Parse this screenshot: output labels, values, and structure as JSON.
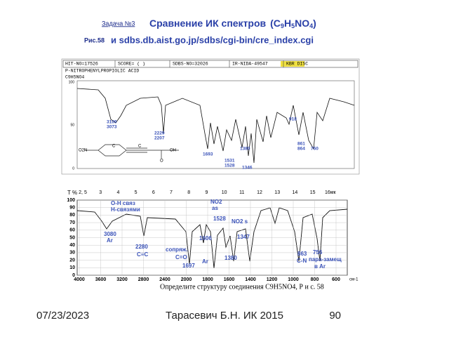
{
  "header": {
    "task": "Задача №3",
    "title": "Сравнение ИК спектров",
    "formula": [
      "(C",
      "9",
      "H",
      "5",
      "NO",
      "4",
      ")"
    ],
    "figure": "Рис.58",
    "link": "и sdbs.db.aist.go.jp/sdbs/cgi-bin/cre_index.cgi"
  },
  "spectrum1": {
    "info": [
      "HIT-NO=17526",
      "SCORE=  (  )",
      "SDBS-NO=32026",
      "IR-NIDA-49547",
      "KBR DISC"
    ],
    "compound": "P-NITROPHENYLPROPIOLIC ACID",
    "formula": "C9H5NO4",
    "yticks": [
      "100",
      "50",
      "0"
    ],
    "peaks": [
      "3109",
      "3073",
      "2229",
      "2207",
      "1693",
      "1531",
      "1528",
      "1346",
      "1380",
      "918",
      "861",
      "864",
      "760"
    ],
    "structure": [
      "O2N",
      "C",
      "C",
      "OH",
      "O"
    ]
  },
  "spectrum2": {
    "yunit": "T %",
    "top_ticks": [
      "2, 5",
      "3",
      "4",
      "5",
      "6",
      "7",
      "8",
      "9",
      "10",
      "11",
      "12",
      "13",
      "14",
      "15",
      "16мк"
    ],
    "yticks": [
      "100",
      "90",
      "80",
      "70",
      "60",
      "50",
      "40",
      "30",
      "20",
      "10",
      "0"
    ],
    "xticks": [
      "4000",
      "3600",
      "3200",
      "2800",
      "2400",
      "2000",
      "1800",
      "1600",
      "1400",
      "1200",
      "1000",
      "800",
      "600"
    ],
    "xunit": "см-1",
    "annotations": [
      "O-H связ",
      "H-связями",
      "3080",
      "Ar",
      "2280",
      "C≡C",
      "сопряж.",
      "C=O",
      "1697",
      "1606",
      "Ar",
      "NO2",
      "as",
      "1528",
      "NO2 s",
      "1347",
      "1380",
      "863",
      "C-N",
      "756",
      "пара-замещ",
      "в Ar"
    ],
    "caption": "Определите структуру соединения C9H5NO4, Р и с. 58"
  },
  "footer": {
    "date": "07/23/2023",
    "author": "Тарасевич Б.Н.  ИК 2015",
    "page": "90"
  }
}
